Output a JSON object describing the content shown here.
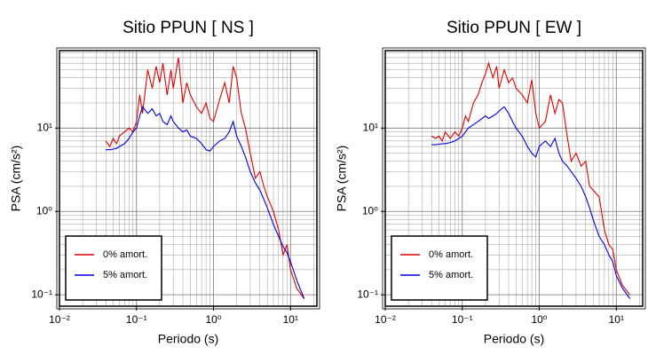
{
  "chart_data": [
    {
      "type": "line",
      "title": "Sitio PPUN [ NS ]",
      "x_label": "Periodo (s)",
      "y_label": "PSA (cm/s²)",
      "log_x": true,
      "log_y": true,
      "grid": true,
      "legend": "lower left",
      "xlim": [
        0.01,
        22
      ],
      "ylim": [
        0.073,
        85
      ],
      "xticks": [
        {
          "value": 0.01,
          "label": "10⁻²"
        },
        {
          "value": 0.1,
          "label": "10⁻¹"
        },
        {
          "value": 1,
          "label": "10⁰"
        },
        {
          "value": 10,
          "label": "10¹"
        }
      ],
      "yticks": [
        {
          "value": 0.1,
          "label": "10⁻¹"
        },
        {
          "value": 1,
          "label": "10⁰"
        },
        {
          "value": 10,
          "label": "10¹"
        }
      ],
      "x": [
        0.04,
        0.045,
        0.05,
        0.055,
        0.06,
        0.07,
        0.08,
        0.09,
        0.1,
        0.11,
        0.12,
        0.14,
        0.16,
        0.18,
        0.2,
        0.22,
        0.25,
        0.28,
        0.3,
        0.35,
        0.4,
        0.45,
        0.5,
        0.6,
        0.7,
        0.8,
        0.9,
        1.0,
        1.2,
        1.4,
        1.6,
        1.8,
        2.0,
        2.3,
        2.6,
        3.0,
        3.5,
        4.0,
        4.5,
        5,
        6,
        7,
        8,
        9,
        10,
        12,
        15
      ],
      "series": [
        {
          "name": "0% amort.",
          "color": "#e00000",
          "values": [
            7,
            6,
            7.5,
            6.5,
            8,
            9,
            10,
            9,
            12,
            25,
            15,
            50,
            30,
            55,
            35,
            60,
            25,
            50,
            30,
            70,
            20,
            35,
            25,
            18,
            15,
            20,
            13,
            12,
            22,
            35,
            20,
            55,
            40,
            15,
            10,
            5,
            2.5,
            3,
            2,
            1.5,
            1,
            0.6,
            0.3,
            0.4,
            0.2,
            0.12,
            0.09
          ]
        },
        {
          "name": "5% amort.",
          "color": "#0000e0",
          "values": [
            5.5,
            5.5,
            5.6,
            5.7,
            6,
            6.5,
            7.5,
            9,
            10,
            14,
            18,
            15,
            17,
            14,
            15,
            12,
            11,
            14,
            12,
            10,
            9,
            9.5,
            8,
            7.5,
            6.5,
            5.5,
            5.3,
            6,
            7,
            7.5,
            9,
            12,
            8,
            6,
            4.5,
            3,
            2.2,
            1.8,
            1.4,
            1.1,
            0.7,
            0.5,
            0.38,
            0.32,
            0.25,
            0.15,
            0.09
          ]
        }
      ]
    },
    {
      "type": "line",
      "title": "Sitio PPUN [ EW ]",
      "x_label": "Periodo (s)",
      "y_label": "PSA (cm/s²)",
      "log_x": true,
      "log_y": true,
      "grid": true,
      "legend": "lower left",
      "xlim": [
        0.01,
        22
      ],
      "ylim": [
        0.073,
        85
      ],
      "xticks": [
        {
          "value": 0.01,
          "label": "10⁻²"
        },
        {
          "value": 0.1,
          "label": "10⁻¹"
        },
        {
          "value": 1,
          "label": "10⁰"
        },
        {
          "value": 10,
          "label": "10¹"
        }
      ],
      "yticks": [
        {
          "value": 0.1,
          "label": "10⁻¹"
        },
        {
          "value": 1,
          "label": "10⁰"
        },
        {
          "value": 10,
          "label": "10¹"
        }
      ],
      "x": [
        0.04,
        0.045,
        0.05,
        0.055,
        0.06,
        0.07,
        0.08,
        0.09,
        0.1,
        0.11,
        0.12,
        0.14,
        0.16,
        0.18,
        0.2,
        0.22,
        0.25,
        0.28,
        0.3,
        0.35,
        0.4,
        0.45,
        0.5,
        0.6,
        0.7,
        0.8,
        0.9,
        1.0,
        1.2,
        1.4,
        1.6,
        1.8,
        2.0,
        2.3,
        2.6,
        3.0,
        3.5,
        4.0,
        4.5,
        5,
        6,
        7,
        8,
        9,
        10,
        12,
        15
      ],
      "series": [
        {
          "name": "0% amort.",
          "color": "#e00000",
          "values": [
            8,
            7.5,
            8,
            7,
            9,
            7.5,
            9,
            8,
            10,
            14,
            12,
            20,
            25,
            35,
            45,
            60,
            40,
            55,
            30,
            50,
            35,
            40,
            30,
            25,
            20,
            38,
            15,
            10,
            12,
            25,
            15,
            22,
            20,
            8,
            4,
            5,
            3.5,
            4,
            2,
            1.8,
            1.5,
            0.6,
            0.4,
            0.35,
            0.2,
            0.13,
            0.1
          ]
        },
        {
          "name": "5% amort.",
          "color": "#0000e0",
          "values": [
            6.3,
            6.3,
            6.4,
            6.5,
            6.5,
            6.7,
            7,
            7.5,
            8,
            9,
            10,
            11,
            12,
            13,
            14,
            13,
            14,
            15,
            16,
            18,
            15,
            12,
            10,
            8,
            6,
            5,
            4.5,
            6,
            7,
            6,
            7.5,
            5,
            4,
            3.5,
            3,
            2.5,
            2,
            1.5,
            1.1,
            0.8,
            0.5,
            0.4,
            0.3,
            0.25,
            0.17,
            0.12,
            0.09
          ]
        }
      ]
    }
  ]
}
